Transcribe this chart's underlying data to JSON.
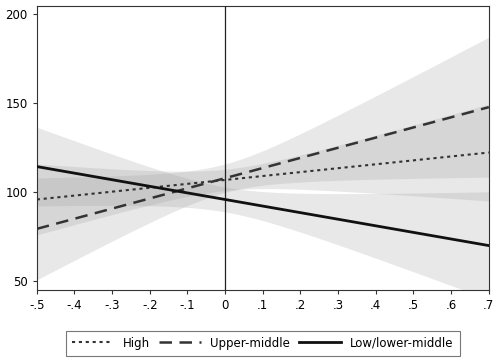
{
  "xlim": [
    -0.5,
    0.7
  ],
  "ylim": [
    45,
    205
  ],
  "xticks": [
    -0.5,
    -0.4,
    -0.3,
    -0.2,
    -0.1,
    0,
    0.1,
    0.2,
    0.3,
    0.4,
    0.5,
    0.6,
    0.7
  ],
  "xticklabels": [
    "-.5",
    "-.4",
    "-.3",
    "-.2",
    "-.1",
    "0",
    ".1",
    ".2",
    ".3",
    ".4",
    ".5",
    ".6",
    ".7"
  ],
  "yticks": [
    50,
    100,
    150,
    200
  ],
  "vline_x": 0,
  "lines": {
    "high": {
      "label": "High",
      "linestyle": "dotted",
      "color": "#333333",
      "linewidth": 1.5,
      "intercept_at_zero": 107,
      "slope": 22.0,
      "ci_half_intercept": 6,
      "ci_half_slope": 38
    },
    "upper_middle": {
      "label": "Upper-middle",
      "linestyle": "dashed",
      "color": "#333333",
      "linewidth": 1.8,
      "intercept_at_zero": 108,
      "slope": 57.0,
      "ci_half_intercept": 8,
      "ci_half_slope": 55
    },
    "low": {
      "label": "Low/lower-middle",
      "linestyle": "solid",
      "color": "#111111",
      "linewidth": 2.0,
      "intercept_at_zero": 96,
      "slope": -37.0,
      "ci_half_intercept": 7,
      "ci_half_slope": 42
    }
  },
  "band_alpha": 0.22,
  "band_color": "#999999",
  "background_color": "#ffffff",
  "figsize": [
    5.0,
    3.59
  ],
  "dpi": 100
}
